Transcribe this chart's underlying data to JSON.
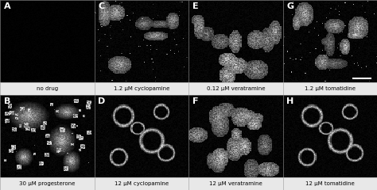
{
  "panels": [
    {
      "label": "A",
      "row": 0,
      "col": 0,
      "caption": "no drug"
    },
    {
      "label": "C",
      "row": 0,
      "col": 1,
      "caption": "1.2 μM cyclopamine"
    },
    {
      "label": "E",
      "row": 0,
      "col": 2,
      "caption": "0.12 μM veratramine"
    },
    {
      "label": "G",
      "row": 0,
      "col": 3,
      "caption": "1.2 μM tomatidine"
    },
    {
      "label": "B",
      "row": 1,
      "col": 0,
      "caption": "30 μM progesterone"
    },
    {
      "label": "D",
      "row": 1,
      "col": 1,
      "caption": "12 μM cyclopamine"
    },
    {
      "label": "F",
      "row": 1,
      "col": 2,
      "caption": "12 μM veratramine"
    },
    {
      "label": "H",
      "row": 1,
      "col": 3,
      "caption": "12 μM tomatidine"
    }
  ],
  "bg_color": "#000000",
  "label_color": "#ffffff",
  "caption_bg": "#e8e8e8",
  "caption_text_color": "#000000",
  "border_color": "#999999",
  "label_fontsize": 8,
  "caption_fontsize": 5.0,
  "fig_width": 4.74,
  "fig_height": 2.4
}
